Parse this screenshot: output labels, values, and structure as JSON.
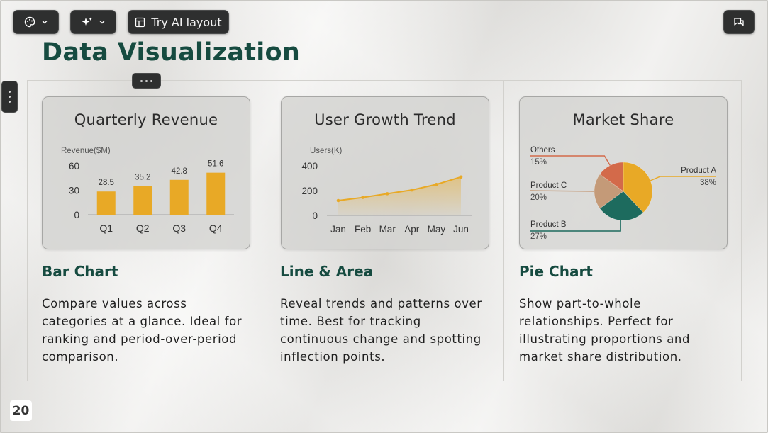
{
  "toolbar": {
    "theme_icon": "palette-icon",
    "ai_icon": "sparkle-icon",
    "ai_layout_label": "Try AI layout",
    "comment_icon": "chat-icon"
  },
  "slide": {
    "title": "Data Visualization",
    "page_number": "20"
  },
  "columns": [
    {
      "heading": "Bar Chart",
      "description": "Compare values across categories at a glance. Ideal for ranking and period-over-period comparison."
    },
    {
      "heading": "Line & Area",
      "description": "Reveal trends and patterns over time. Best for tracking continuous change and spotting inflection points."
    },
    {
      "heading": "Pie Chart",
      "description": "Show part-to-whole relationships. Perfect for illustrating proportions and market share distribution."
    }
  ],
  "colors": {
    "accent_gold": "#e8a926",
    "accent_teal": "#1d6b5e",
    "accent_tan": "#c49a78",
    "accent_red": "#d36a4a",
    "title_green": "#164b40"
  },
  "chart_data": [
    {
      "type": "bar",
      "title": "Quarterly Revenue",
      "ylabel": "Revenue($M)",
      "categories": [
        "Q1",
        "Q2",
        "Q3",
        "Q4"
      ],
      "values": [
        28.5,
        35.2,
        42.8,
        51.6
      ],
      "data_labels": [
        "28.5",
        "35.2",
        "42.8",
        "51.6"
      ],
      "yticks": [
        "0",
        "30",
        "60"
      ],
      "ylim": [
        0,
        60
      ]
    },
    {
      "type": "area",
      "title": "User Growth Trend",
      "ylabel": "Users(K)",
      "categories": [
        "Jan",
        "Feb",
        "Mar",
        "Apr",
        "May",
        "Jun"
      ],
      "values": [
        120,
        145,
        175,
        205,
        250,
        310
      ],
      "yticks": [
        "0",
        "200",
        "400"
      ],
      "ylim": [
        0,
        400
      ]
    },
    {
      "type": "pie",
      "title": "Market Share",
      "slices": [
        {
          "name": "Product A",
          "label": "38%",
          "value": 38
        },
        {
          "name": "Product B",
          "label": "27%",
          "value": 27
        },
        {
          "name": "Product C",
          "label": "20%",
          "value": 20
        },
        {
          "name": "Others",
          "label": "15%",
          "value": 15
        }
      ]
    }
  ]
}
